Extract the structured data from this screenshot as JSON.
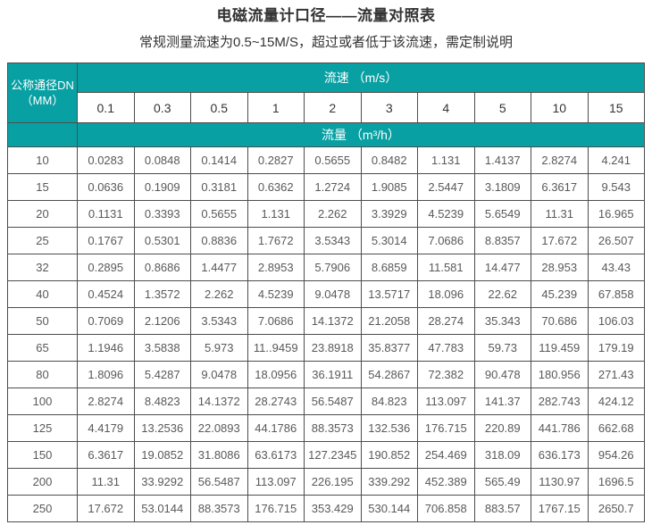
{
  "page": {
    "title": "电磁流量计口径——流量对照表",
    "subtitle": "常规测量流速为0.5~15M/S，超过或者低于该流速，需定制说明"
  },
  "colors": {
    "header_teal": "#08a0a3",
    "border": "#4d4d4d",
    "data_text": "#58595b",
    "title_text": "#333333"
  },
  "table": {
    "corner_header_line1": "公称通径DN",
    "corner_header_line2": "（MM）",
    "velocity_header": "流速 （m/s）",
    "flow_header": "流量 （m³/h）",
    "velocities": [
      "0.1",
      "0.3",
      "0.5",
      "1",
      "2",
      "3",
      "4",
      "5",
      "10",
      "15"
    ],
    "rows": [
      {
        "dn": "10",
        "values": [
          "0.0283",
          "0.0848",
          "0.1414",
          "0.2827",
          "0.5655",
          "0.8482",
          "1.131",
          "1.4137",
          "2.8274",
          "4.241"
        ]
      },
      {
        "dn": "15",
        "values": [
          "0.0636",
          "0.1909",
          "0.3181",
          "0.6362",
          "1.2724",
          "1.9085",
          "2.5447",
          "3.1809",
          "6.3617",
          "9.543"
        ]
      },
      {
        "dn": "20",
        "values": [
          "0.1131",
          "0.3393",
          "0.5655",
          "1.131",
          "2.262",
          "3.3929",
          "4.5239",
          "5.6549",
          "11.31",
          "16.965"
        ]
      },
      {
        "dn": "25",
        "values": [
          "0.1767",
          "0.5301",
          "0.8836",
          "1.7672",
          "3.5343",
          "5.3014",
          "7.0686",
          "8.8357",
          "17.672",
          "26.507"
        ]
      },
      {
        "dn": "32",
        "values": [
          "0.2895",
          "0.8686",
          "1.4477",
          "2.8953",
          "5.7906",
          "8.6859",
          "11.581",
          "14.477",
          "28.953",
          "43.43"
        ]
      },
      {
        "dn": "40",
        "values": [
          "0.4524",
          "1.3572",
          "2.262",
          "4.5239",
          "9.0478",
          "13.5717",
          "18.096",
          "22.62",
          "45.239",
          "67.858"
        ]
      },
      {
        "dn": "50",
        "values": [
          "0.7069",
          "2.1206",
          "3.5343",
          "7.0686",
          "14.1372",
          "21.2058",
          "28.274",
          "35.343",
          "70.686",
          "106.03"
        ]
      },
      {
        "dn": "65",
        "values": [
          "1.1946",
          "3.5838",
          "5.973",
          "11..9459",
          "23.8918",
          "35.8377",
          "47.783",
          "59.73",
          "119.459",
          "179.19"
        ]
      },
      {
        "dn": "80",
        "values": [
          "1.8096",
          "5.4287",
          "9.0478",
          "18.0956",
          "36.1911",
          "54.2867",
          "72.382",
          "90.478",
          "180.956",
          "271.43"
        ]
      },
      {
        "dn": "100",
        "values": [
          "2.8274",
          "8.4823",
          "14.1372",
          "28.2743",
          "56.5487",
          "84.823",
          "113.097",
          "141.37",
          "282.743",
          "424.12"
        ]
      },
      {
        "dn": "125",
        "values": [
          "4.4179",
          "13.2536",
          "22.0893",
          "44.1786",
          "88.3573",
          "132.536",
          "176.715",
          "220.89",
          "441.786",
          "662.68"
        ]
      },
      {
        "dn": "150",
        "values": [
          "6.3617",
          "19.0852",
          "31.8086",
          "63.6173",
          "127.2345",
          "190.852",
          "254.469",
          "318.09",
          "636.173",
          "954.26"
        ]
      },
      {
        "dn": "200",
        "values": [
          "11.31",
          "33.9292",
          "56.5487",
          "113.097",
          "226.195",
          "339.292",
          "452.389",
          "565.49",
          "1130.97",
          "1696.5"
        ]
      },
      {
        "dn": "250",
        "values": [
          "17.672",
          "53.0144",
          "88.3573",
          "176.715",
          "353.429",
          "530.144",
          "706.858",
          "883.57",
          "1767.15",
          "2650.7"
        ]
      }
    ]
  }
}
